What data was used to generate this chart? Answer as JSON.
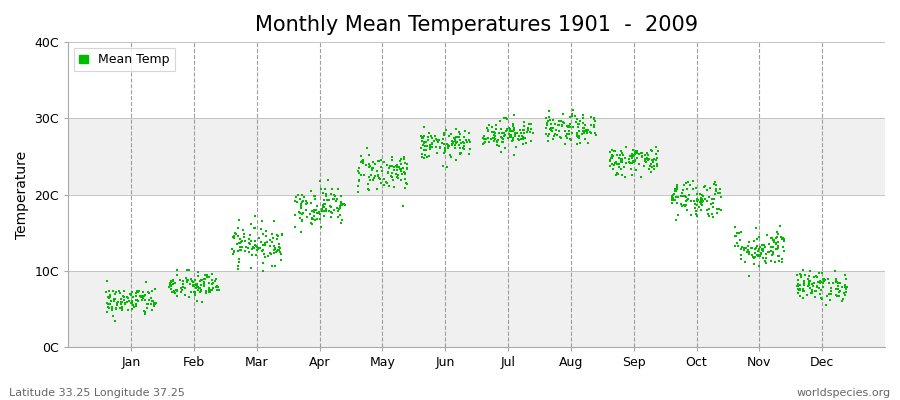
{
  "title": "Monthly Mean Temperatures 1901  -  2009",
  "ylabel": "Temperature",
  "xlabel_bottom_left": "Latitude 33.25 Longitude 37.25",
  "xlabel_bottom_right": "worldspecies.org",
  "legend_label": "Mean Temp",
  "marker_color": "#00bb00",
  "band_color_light": "#f0f0f0",
  "band_color_white": "#ffffff",
  "fig_background": "#ffffff",
  "ylim": [
    0,
    40
  ],
  "yticks": [
    0,
    10,
    20,
    30,
    40
  ],
  "ytick_labels": [
    "0C",
    "10C",
    "20C",
    "30C",
    "40C"
  ],
  "month_labels": [
    "Jan",
    "Feb",
    "Mar",
    "Apr",
    "May",
    "Jun",
    "Jul",
    "Aug",
    "Sep",
    "Oct",
    "Nov",
    "Dec"
  ],
  "monthly_mean_temps": [
    6.0,
    8.0,
    13.5,
    18.5,
    23.0,
    26.5,
    28.0,
    28.5,
    24.5,
    19.5,
    13.0,
    8.0
  ],
  "monthly_spread": [
    1.5,
    1.5,
    2.0,
    2.0,
    2.0,
    1.5,
    1.5,
    1.5,
    1.5,
    2.0,
    2.0,
    1.5
  ],
  "n_years": 109,
  "seed": 42,
  "title_fontsize": 15,
  "axis_label_fontsize": 10,
  "tick_fontsize": 9,
  "footer_fontsize": 8
}
